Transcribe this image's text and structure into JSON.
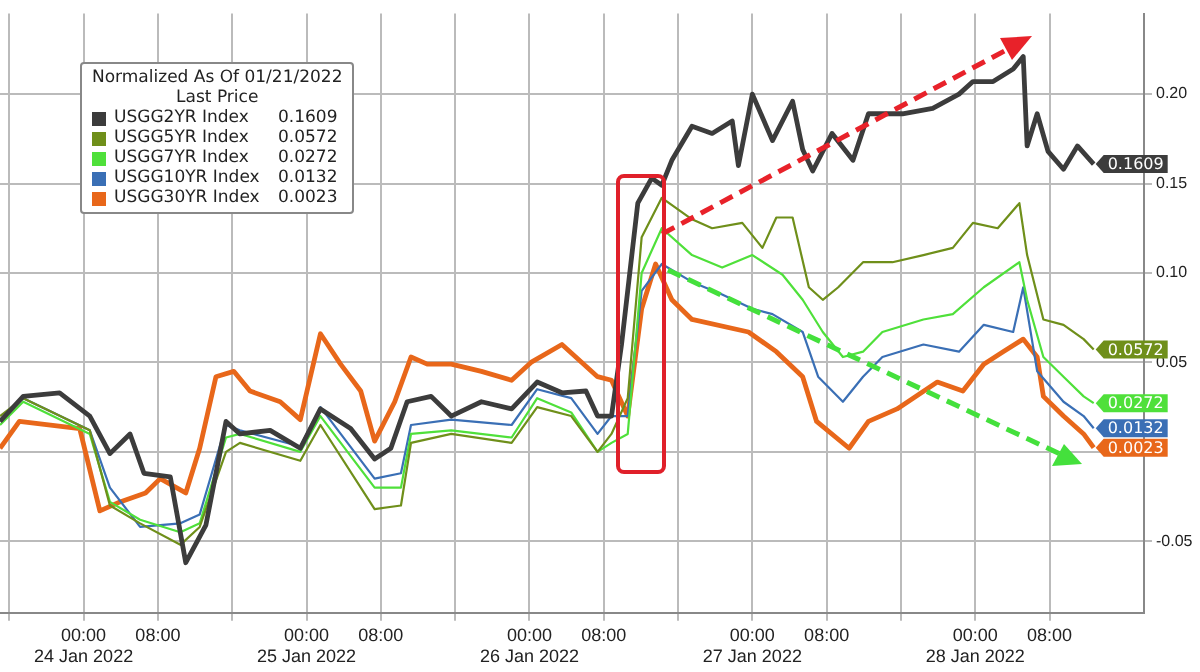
{
  "chart_data": {
    "type": "line",
    "legend_title": "Normalized As Of 01/21/2022\nLast Price",
    "legend": "top left",
    "grid": true,
    "marker": "none",
    "line_style": "solid",
    "xlim": [
      "2022-01-23T15:00",
      "2022-01-28T18:10"
    ],
    "xticks": [
      {
        "value": "2022-01-23T16:00",
        "label": null
      },
      {
        "value": "2022-01-24T00:00",
        "label": "00:00\n24 Jan 2022"
      },
      {
        "value": "2022-01-24T08:00",
        "label": "08:00"
      },
      {
        "value": "2022-01-24T16:00",
        "label": null
      },
      {
        "value": "2022-01-25T00:00",
        "label": "00:00\n25 Jan 2022"
      },
      {
        "value": "2022-01-25T08:00",
        "label": "08:00"
      },
      {
        "value": "2022-01-25T16:00",
        "label": null
      },
      {
        "value": "2022-01-26T00:00",
        "label": "00:00\n26 Jan 2022"
      },
      {
        "value": "2022-01-26T08:00",
        "label": "08:00"
      },
      {
        "value": "2022-01-26T16:00",
        "label": null
      },
      {
        "value": "2022-01-27T00:00",
        "label": "00:00\n27 Jan 2022"
      },
      {
        "value": "2022-01-27T08:00",
        "label": "08:00"
      },
      {
        "value": "2022-01-27T16:00",
        "label": null
      },
      {
        "value": "2022-01-28T00:00",
        "label": "00:00\n28 Jan 2022"
      },
      {
        "value": "2022-01-28T08:00",
        "label": "08:00"
      }
    ],
    "ylim": [
      -0.09,
      0.245
    ],
    "yticks": [
      {
        "value": -0.05,
        "label": "-0.05"
      },
      {
        "value": 0,
        "label": null
      },
      {
        "value": 0.05,
        "label": "0.05"
      },
      {
        "value": 0.1,
        "label": "0.10"
      },
      {
        "value": 0.15,
        "label": "0.15"
      },
      {
        "value": 0.2,
        "label": "0.20"
      }
    ],
    "series": [
      {
        "name": "USGG2YR Index",
        "color": "#3c3c3c",
        "x": [
          "2022-01-23T15:00",
          "2022-01-23T17:30",
          "2022-01-23T21:25",
          "2022-01-24T00:40",
          "2022-01-24T02:50",
          "2022-01-24T05:00",
          "2022-01-24T06:30",
          "2022-01-24T09:20",
          "2022-01-24T11:00",
          "2022-01-24T13:10",
          "2022-01-24T15:20",
          "2022-01-24T16:50",
          "2022-01-24T20:05",
          "2022-01-24T23:20",
          "2022-01-25T01:30",
          "2022-01-25T04:45",
          "2022-01-25T07:20",
          "2022-01-25T09:05",
          "2022-01-25T10:50",
          "2022-01-25T13:25",
          "2022-01-25T15:35",
          "2022-01-25T18:50",
          "2022-01-25T22:05",
          "2022-01-26T00:50",
          "2022-01-26T03:30",
          "2022-01-26T06:05",
          "2022-01-26T07:20",
          "2022-01-26T08:50",
          "2022-01-26T09:55",
          "2022-01-26T11:40",
          "2022-01-26T13:10",
          "2022-01-26T14:15",
          "2022-01-26T15:20",
          "2022-01-26T17:30",
          "2022-01-26T19:40",
          "2022-01-26T21:50",
          "2022-01-26T22:30",
          "2022-01-27T00:00",
          "2022-01-27T02:10",
          "2022-01-27T04:20",
          "2022-01-27T05:25",
          "2022-01-27T06:30",
          "2022-01-27T08:35",
          "2022-01-27T10:50",
          "2022-01-27T12:30",
          "2022-01-27T16:10",
          "2022-01-27T19:25",
          "2022-01-27T22:15",
          "2022-01-27T23:45",
          "2022-01-28T01:55",
          "2022-01-28T04:05",
          "2022-01-28T05:10",
          "2022-01-28T05:35",
          "2022-01-28T06:40",
          "2022-01-28T07:50",
          "2022-01-28T09:30",
          "2022-01-28T11:00",
          "2022-01-28T12:45"
        ],
        "values": [
          0.017,
          0.031,
          0.033,
          0.02,
          -0.001,
          0.01,
          -0.012,
          -0.014,
          -0.062,
          -0.041,
          0.017,
          0.01,
          0.012,
          0.002,
          0.024,
          0.013,
          -0.004,
          0.002,
          0.028,
          0.031,
          0.02,
          0.028,
          0.024,
          0.039,
          0.033,
          0.034,
          0.02,
          0.02,
          0.06,
          0.139,
          0.153,
          0.149,
          0.163,
          0.182,
          0.178,
          0.185,
          0.16,
          0.2,
          0.174,
          0.196,
          0.169,
          0.157,
          0.178,
          0.163,
          0.189,
          0.189,
          0.192,
          0.2,
          0.207,
          0.207,
          0.214,
          0.221,
          0.171,
          0.189,
          0.168,
          0.158,
          0.171,
          0.1609
        ]
      },
      {
        "name": "USGG5YR Index",
        "color": "#6f8f1a",
        "x": [
          "2022-01-23T15:00",
          "2022-01-23T17:30",
          "2022-01-24T00:40",
          "2022-01-24T02:50",
          "2022-01-24T06:05",
          "2022-01-24T10:25",
          "2022-01-24T12:30",
          "2022-01-24T15:20",
          "2022-01-24T16:50",
          "2022-01-24T23:20",
          "2022-01-25T01:30",
          "2022-01-25T07:20",
          "2022-01-25T10:10",
          "2022-01-25T11:15",
          "2022-01-25T15:35",
          "2022-01-25T22:05",
          "2022-01-26T00:50",
          "2022-01-26T04:30",
          "2022-01-26T07:20",
          "2022-01-26T08:50",
          "2022-01-26T10:35",
          "2022-01-26T12:05",
          "2022-01-26T14:15",
          "2022-01-26T17:30",
          "2022-01-26T19:40",
          "2022-01-26T22:55",
          "2022-01-27T01:05",
          "2022-01-27T02:35",
          "2022-01-27T04:20",
          "2022-01-27T06:05",
          "2022-01-27T07:35",
          "2022-01-27T09:15",
          "2022-01-27T11:55",
          "2022-01-27T15:05",
          "2022-01-27T18:25",
          "2022-01-27T21:35",
          "2022-01-27T23:45",
          "2022-01-28T02:25",
          "2022-01-28T04:45",
          "2022-01-28T05:35",
          "2022-01-28T07:20",
          "2022-01-28T09:30",
          "2022-01-28T11:40",
          "2022-01-28T12:45"
        ],
        "values": [
          0.02,
          0.03,
          0.012,
          -0.03,
          -0.04,
          -0.052,
          -0.042,
          0.0,
          0.005,
          -0.005,
          0.015,
          -0.032,
          -0.03,
          0.005,
          0.01,
          0.005,
          0.025,
          0.02,
          0.0,
          0.01,
          0.03,
          0.12,
          0.142,
          0.13,
          0.125,
          0.128,
          0.114,
          0.131,
          0.131,
          0.092,
          0.085,
          0.092,
          0.106,
          0.106,
          0.11,
          0.114,
          0.128,
          0.125,
          0.139,
          0.11,
          0.074,
          0.071,
          0.063,
          0.0572
        ]
      },
      {
        "name": "USGG7YR Index",
        "color": "#4fe03a",
        "x": [
          "2022-01-23T15:00",
          "2022-01-23T17:30",
          "2022-01-24T00:40",
          "2022-01-24T02:50",
          "2022-01-24T06:05",
          "2022-01-24T10:25",
          "2022-01-24T12:30",
          "2022-01-24T15:20",
          "2022-01-24T16:50",
          "2022-01-24T23:20",
          "2022-01-25T01:30",
          "2022-01-25T07:20",
          "2022-01-25T10:10",
          "2022-01-25T11:15",
          "2022-01-25T15:35",
          "2022-01-25T22:05",
          "2022-01-26T00:50",
          "2022-01-26T04:30",
          "2022-01-26T07:20",
          "2022-01-26T08:50",
          "2022-01-26T10:35",
          "2022-01-26T12:05",
          "2022-01-26T14:15",
          "2022-01-26T17:30",
          "2022-01-26T20:45",
          "2022-01-27T00:00",
          "2022-01-27T03:15",
          "2022-01-27T05:25",
          "2022-01-27T07:35",
          "2022-01-27T09:45",
          "2022-01-27T11:55",
          "2022-01-27T14:00",
          "2022-01-27T18:25",
          "2022-01-27T21:35",
          "2022-01-28T00:55",
          "2022-01-28T04:45",
          "2022-01-28T05:35",
          "2022-01-28T07:20",
          "2022-01-28T09:30",
          "2022-01-28T11:40",
          "2022-01-28T12:45"
        ],
        "values": [
          0.015,
          0.028,
          0.01,
          -0.028,
          -0.038,
          -0.045,
          -0.04,
          0.008,
          0.01,
          0.0,
          0.02,
          -0.02,
          -0.02,
          0.01,
          0.012,
          0.008,
          0.03,
          0.022,
          0.0,
          0.005,
          0.01,
          0.1,
          0.125,
          0.11,
          0.103,
          0.11,
          0.099,
          0.085,
          0.067,
          0.053,
          0.056,
          0.067,
          0.074,
          0.077,
          0.092,
          0.106,
          0.085,
          0.053,
          0.042,
          0.031,
          0.0272
        ]
      },
      {
        "name": "USGG10YR Index",
        "color": "#3a6fb5",
        "x": [
          "2022-01-23T15:00",
          "2022-01-23T17:30",
          "2022-01-24T00:40",
          "2022-01-24T02:50",
          "2022-01-24T06:05",
          "2022-01-24T10:25",
          "2022-01-24T12:30",
          "2022-01-24T15:20",
          "2022-01-24T16:50",
          "2022-01-24T23:20",
          "2022-01-25T01:30",
          "2022-01-25T07:20",
          "2022-01-25T10:10",
          "2022-01-25T11:15",
          "2022-01-25T15:35",
          "2022-01-25T22:05",
          "2022-01-26T00:50",
          "2022-01-26T04:30",
          "2022-01-26T07:20",
          "2022-01-26T08:50",
          "2022-01-26T10:35",
          "2022-01-26T12:05",
          "2022-01-26T14:15",
          "2022-01-26T17:30",
          "2022-01-26T20:45",
          "2022-01-27T00:00",
          "2022-01-27T02:10",
          "2022-01-27T05:25",
          "2022-01-27T07:05",
          "2022-01-27T09:45",
          "2022-01-27T11:55",
          "2022-01-27T14:00",
          "2022-01-27T18:25",
          "2022-01-27T22:15",
          "2022-01-28T00:55",
          "2022-01-28T04:05",
          "2022-01-28T05:10",
          "2022-01-28T06:40",
          "2022-01-28T09:30",
          "2022-01-28T11:40",
          "2022-01-28T12:45"
        ],
        "values": [
          0.018,
          0.03,
          0.012,
          -0.02,
          -0.042,
          -0.04,
          -0.035,
          0.015,
          0.012,
          0.003,
          0.025,
          -0.015,
          -0.012,
          0.015,
          0.018,
          0.015,
          0.035,
          0.03,
          0.01,
          0.02,
          0.02,
          0.09,
          0.105,
          0.095,
          0.088,
          0.08,
          0.077,
          0.067,
          0.042,
          0.028,
          0.042,
          0.053,
          0.06,
          0.056,
          0.071,
          0.067,
          0.092,
          0.045,
          0.028,
          0.02,
          0.0132
        ]
      },
      {
        "name": "USGG30YR Index",
        "color": "#e8671a",
        "x": [
          "2022-01-23T15:00",
          "2022-01-23T17:05",
          "2022-01-23T23:35",
          "2022-01-24T01:45",
          "2022-01-24T03:55",
          "2022-01-24T06:40",
          "2022-01-24T08:15",
          "2022-01-24T11:00",
          "2022-01-24T12:30",
          "2022-01-24T14:15",
          "2022-01-24T16:10",
          "2022-01-24T17:55",
          "2022-01-24T21:10",
          "2022-01-24T23:20",
          "2022-01-25T01:30",
          "2022-01-25T03:40",
          "2022-01-25T05:50",
          "2022-01-25T07:20",
          "2022-01-25T09:30",
          "2022-01-25T11:15",
          "2022-01-25T13:00",
          "2022-01-25T15:35",
          "2022-01-25T18:50",
          "2022-01-25T22:05",
          "2022-01-26T00:10",
          "2022-01-26T03:30",
          "2022-01-26T07:20",
          "2022-01-26T08:50",
          "2022-01-26T10:35",
          "2022-01-26T12:05",
          "2022-01-26T13:35",
          "2022-01-26T15:20",
          "2022-01-26T17:30",
          "2022-01-26T23:35",
          "2022-01-27T02:35",
          "2022-01-27T05:25",
          "2022-01-27T06:55",
          "2022-01-27T10:25",
          "2022-01-27T12:30",
          "2022-01-27T15:35",
          "2022-01-27T19:55",
          "2022-01-27T22:40",
          "2022-01-28T00:55",
          "2022-01-28T03:00",
          "2022-01-28T05:10",
          "2022-01-28T06:40",
          "2022-01-28T07:20",
          "2022-01-28T09:30",
          "2022-01-28T11:40",
          "2022-01-28T12:45"
        ],
        "values": [
          0.002,
          0.017,
          0.013,
          -0.033,
          -0.028,
          -0.023,
          -0.015,
          -0.023,
          0.002,
          0.042,
          0.045,
          0.034,
          0.028,
          0.018,
          0.066,
          0.049,
          0.034,
          0.006,
          0.028,
          0.053,
          0.049,
          0.049,
          0.045,
          0.04,
          0.05,
          0.06,
          0.042,
          0.04,
          0.02,
          0.08,
          0.105,
          0.085,
          0.074,
          0.067,
          0.056,
          0.042,
          0.017,
          0.002,
          0.017,
          0.024,
          0.039,
          0.034,
          0.049,
          0.056,
          0.063,
          0.053,
          0.031,
          0.02,
          0.01,
          0.0023
        ]
      }
    ],
    "annotations": [
      {
        "text": "0.1609",
        "x": "2022-01-28T12:45",
        "y": 0.1609
      },
      {
        "text": "0.0572",
        "x": "2022-01-28T12:45",
        "y": 0.0572
      },
      {
        "text": "0.0272",
        "x": "2022-01-28T12:45",
        "y": 0.0272
      },
      {
        "text": "0.0132",
        "x": "2022-01-28T12:45",
        "y": 0.0132
      },
      {
        "text": "0.0023",
        "x": "2022-01-28T12:45",
        "y": 0.0023
      }
    ]
  }
}
